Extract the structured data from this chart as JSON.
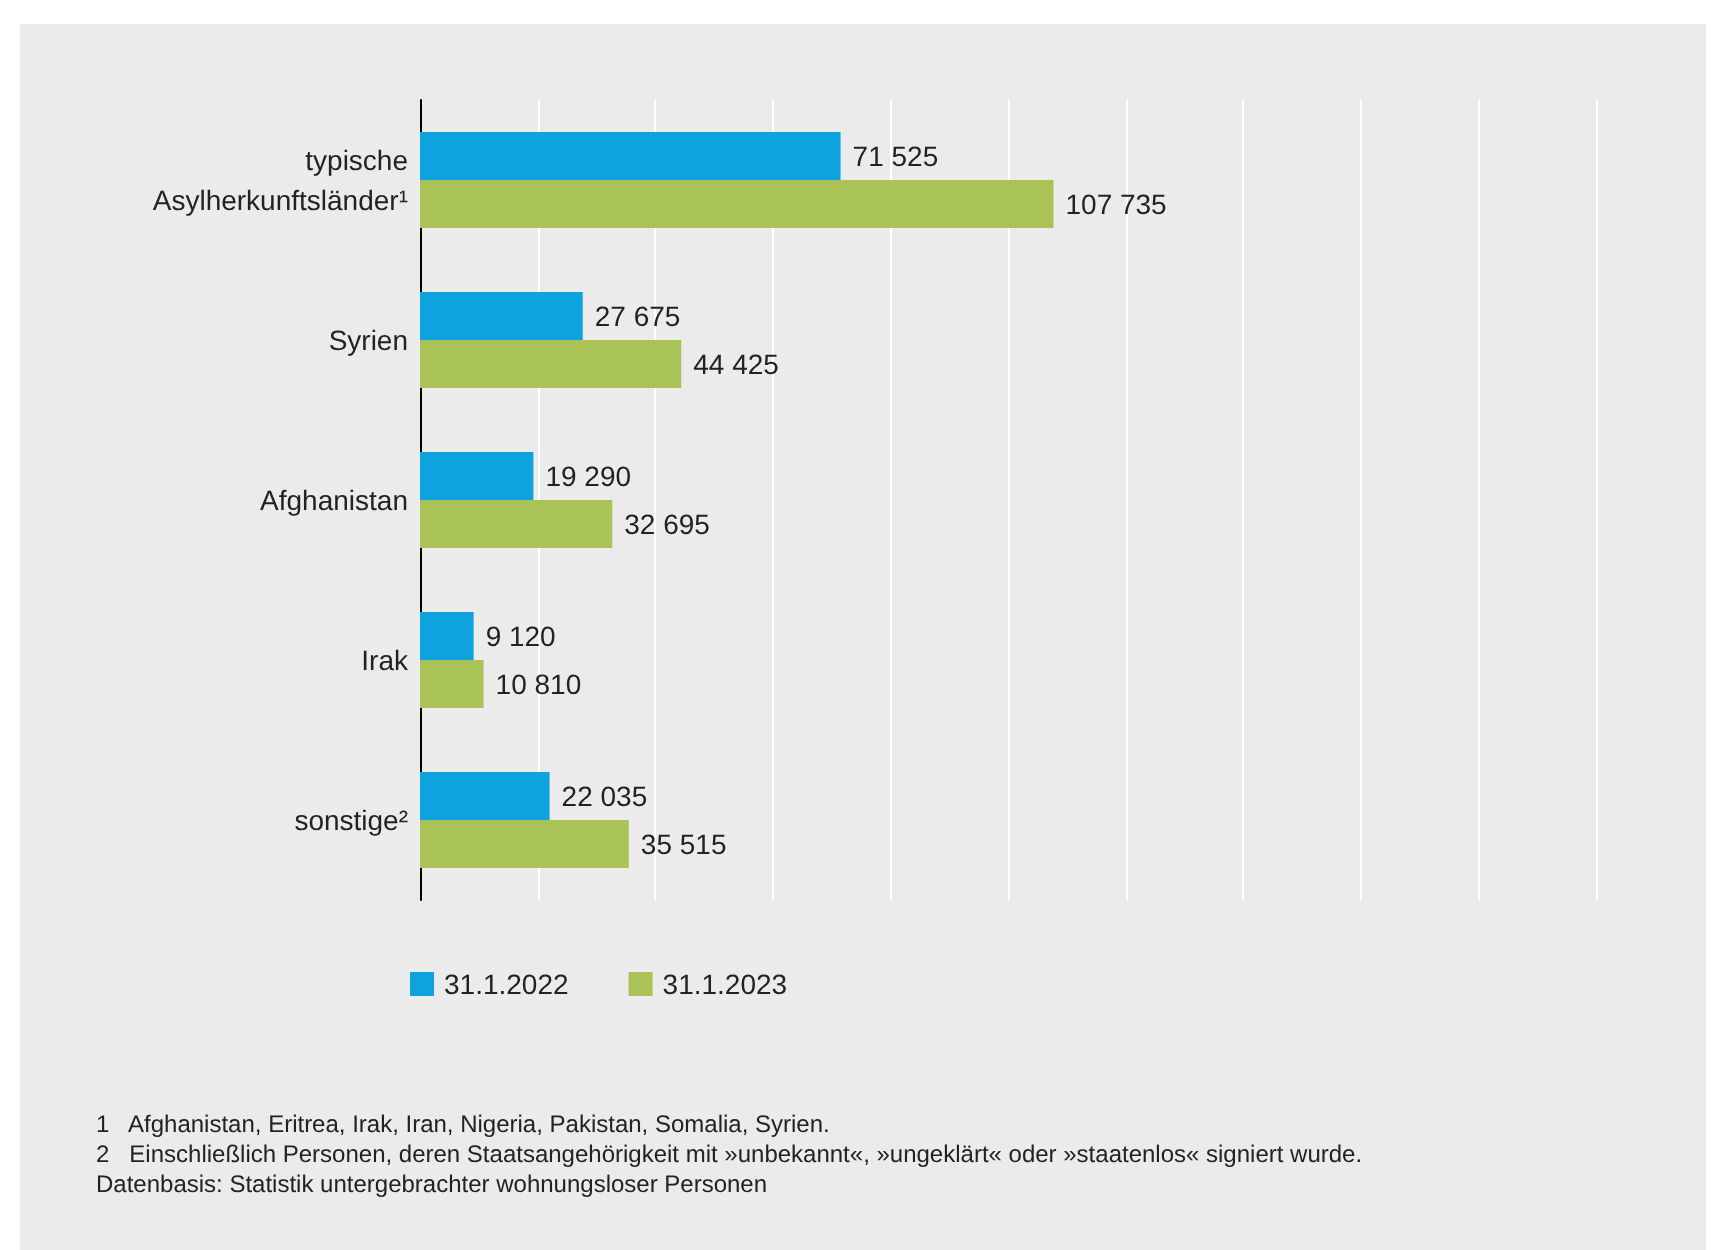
{
  "chart_data": {
    "type": "bar",
    "orientation": "horizontal",
    "categories": [
      "typische\nAsylherkunftsländer¹",
      "Syrien",
      "Afghanistan",
      "Irak",
      "sonstige²"
    ],
    "series": [
      {
        "name": "31.1.2022",
        "color": "#0ea2de",
        "values": [
          71525,
          27675,
          19290,
          9120,
          22035
        ],
        "value_labels": [
          "71 525",
          "27 675",
          "19 290",
          "9 120",
          "22 035"
        ]
      },
      {
        "name": "31.1.2023",
        "color": "#a9c356",
        "values": [
          107735,
          44425,
          32695,
          10810,
          35515
        ],
        "value_labels": [
          "107 735",
          "44 425",
          "32 695",
          "10 810",
          "35 515"
        ]
      }
    ],
    "xlim": [
      0,
      200000
    ],
    "xticks": [
      {
        "value": 0,
        "label": null
      },
      {
        "value": 20000,
        "label": null
      },
      {
        "value": 40000,
        "label": null
      },
      {
        "value": 60000,
        "label": null
      },
      {
        "value": 80000,
        "label": null
      },
      {
        "value": 100000,
        "label": null
      },
      {
        "value": 120000,
        "label": null
      },
      {
        "value": 140000,
        "label": null
      },
      {
        "value": 160000,
        "label": null
      },
      {
        "value": 180000,
        "label": null
      },
      {
        "value": 200000,
        "label": null
      }
    ],
    "grid": "x",
    "legend": "bottom",
    "tick_labels": "y",
    "annotations": [
      "1   Afghanistan, Eritrea, Irak, Iran, Nigeria, Pakistan, Somalia, Syrien.",
      "2   Einschließlich Personen, deren Staatsangehörigkeit mit »unbekannt«, »ungeklärt« oder »staatenlos« signiert wurde.",
      "Datenbasis: Statistik untergebrachter wohnungsloser Personen"
    ]
  }
}
